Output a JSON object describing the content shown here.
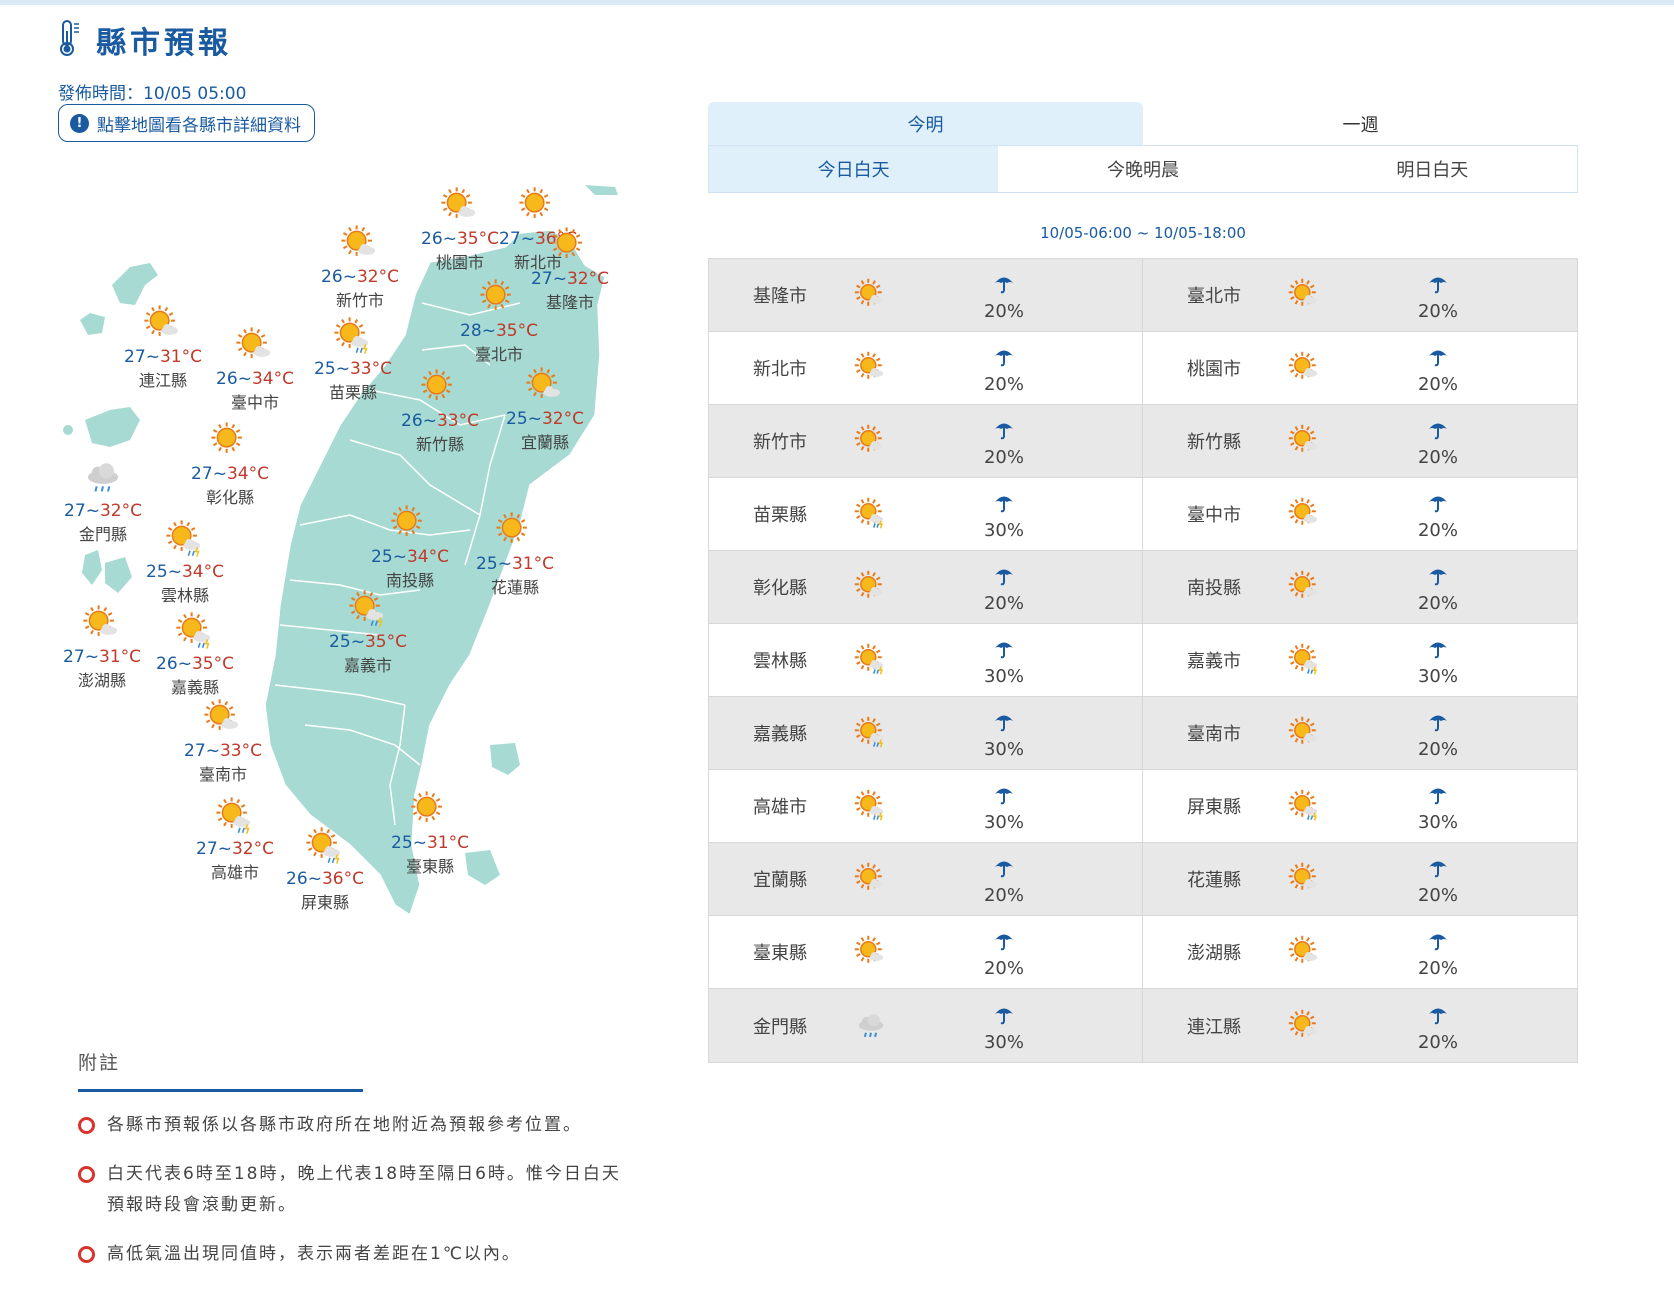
{
  "header": {
    "title": "縣市預報",
    "publish_time": "發佈時間：10/05 05:00",
    "map_button_label": "點擊地圖看各縣市詳細資料"
  },
  "colors": {
    "brand": "#1a5aa0",
    "high_temp": "#c0392b",
    "map_fill": "#a6dad2",
    "grey_row": "#e8e8e8"
  },
  "map": {
    "labels": [
      {
        "city": "新竹市",
        "lo": "26",
        "hi": "32",
        "unit": "°C",
        "icon": "sunny-cloudy-icon"
      },
      {
        "city": "桃園市",
        "lo": "26",
        "hi": "35",
        "unit": "°C",
        "icon": "sunny-cloudy-icon"
      },
      {
        "city": "新北市",
        "lo": "27",
        "hi": "36",
        "unit": "°C",
        "icon": "sunny-icon"
      },
      {
        "city": "基隆市",
        "lo": "27",
        "hi": "32",
        "unit": "°C",
        "icon": "sunny-icon"
      },
      {
        "city": "臺北市",
        "lo": "28",
        "hi": "35",
        "unit": "°C",
        "icon": "sunny-icon"
      },
      {
        "city": "連江縣",
        "lo": "27",
        "hi": "31",
        "unit": "°C",
        "icon": "sunny-cloudy-icon"
      },
      {
        "city": "臺中市",
        "lo": "26",
        "hi": "34",
        "unit": "°C",
        "icon": "sunny-cloudy-icon"
      },
      {
        "city": "苗栗縣",
        "lo": "25",
        "hi": "33",
        "unit": "°C",
        "icon": "sun-shower-icon"
      },
      {
        "city": "新竹縣",
        "lo": "26",
        "hi": "33",
        "unit": "°C",
        "icon": "sunny-icon"
      },
      {
        "city": "宜蘭縣",
        "lo": "25",
        "hi": "32",
        "unit": "°C",
        "icon": "sunny-cloudy-icon"
      },
      {
        "city": "彰化縣",
        "lo": "27",
        "hi": "34",
        "unit": "°C",
        "icon": "sunny-icon"
      },
      {
        "city": "金門縣",
        "lo": "27",
        "hi": "32",
        "unit": "°C",
        "icon": "cloudy-rain-icon"
      },
      {
        "city": "南投縣",
        "lo": "25",
        "hi": "34",
        "unit": "°C",
        "icon": "sunny-icon"
      },
      {
        "city": "花蓮縣",
        "lo": "25",
        "hi": "31",
        "unit": "°C",
        "icon": "sunny-icon"
      },
      {
        "city": "雲林縣",
        "lo": "25",
        "hi": "34",
        "unit": "°C",
        "icon": "sun-shower-icon"
      },
      {
        "city": "嘉義市",
        "lo": "25",
        "hi": "35",
        "unit": "°C",
        "icon": "sun-shower-icon"
      },
      {
        "city": "澎湖縣",
        "lo": "27",
        "hi": "31",
        "unit": "°C",
        "icon": "sunny-cloudy-icon"
      },
      {
        "city": "嘉義縣",
        "lo": "26",
        "hi": "35",
        "unit": "°C",
        "icon": "sun-shower-icon"
      },
      {
        "city": "臺南市",
        "lo": "27",
        "hi": "33",
        "unit": "°C",
        "icon": "sunny-cloudy-icon"
      },
      {
        "city": "臺東縣",
        "lo": "25",
        "hi": "31",
        "unit": "°C",
        "icon": "sunny-icon"
      },
      {
        "city": "高雄市",
        "lo": "27",
        "hi": "32",
        "unit": "°C",
        "icon": "sun-shower-icon"
      },
      {
        "city": "屏東縣",
        "lo": "26",
        "hi": "36",
        "unit": "°C",
        "icon": "sun-shower-icon"
      }
    ]
  },
  "tabs": {
    "period": [
      "今明",
      "一週"
    ],
    "time": [
      "今日白天",
      "今晚明晨",
      "明日白天"
    ]
  },
  "range": "10/05-06:00 ~ 10/05-18:00",
  "table": [
    [
      {
        "city": "基隆市",
        "icon": "sunny-cloudy-icon",
        "rain": "20%"
      },
      {
        "city": "臺北市",
        "icon": "sunny-cloudy-icon",
        "rain": "20%"
      }
    ],
    [
      {
        "city": "新北市",
        "icon": "sunny-cloudy-icon",
        "rain": "20%"
      },
      {
        "city": "桃園市",
        "icon": "sunny-cloudy-icon",
        "rain": "20%"
      }
    ],
    [
      {
        "city": "新竹市",
        "icon": "sunny-cloudy-icon",
        "rain": "20%"
      },
      {
        "city": "新竹縣",
        "icon": "sunny-cloudy-icon",
        "rain": "20%"
      }
    ],
    [
      {
        "city": "苗栗縣",
        "icon": "sun-shower-icon",
        "rain": "30%"
      },
      {
        "city": "臺中市",
        "icon": "sunny-cloudy-icon",
        "rain": "20%"
      }
    ],
    [
      {
        "city": "彰化縣",
        "icon": "sunny-cloudy-icon",
        "rain": "20%"
      },
      {
        "city": "南投縣",
        "icon": "sunny-cloudy-icon",
        "rain": "20%"
      }
    ],
    [
      {
        "city": "雲林縣",
        "icon": "sun-shower-icon",
        "rain": "30%"
      },
      {
        "city": "嘉義市",
        "icon": "sun-shower-icon",
        "rain": "30%"
      }
    ],
    [
      {
        "city": "嘉義縣",
        "icon": "sun-shower-icon",
        "rain": "30%"
      },
      {
        "city": "臺南市",
        "icon": "sunny-cloudy-icon",
        "rain": "20%"
      }
    ],
    [
      {
        "city": "高雄市",
        "icon": "sun-shower-icon",
        "rain": "30%"
      },
      {
        "city": "屏東縣",
        "icon": "sun-shower-icon",
        "rain": "30%"
      }
    ],
    [
      {
        "city": "宜蘭縣",
        "icon": "sunny-cloudy-icon",
        "rain": "20%"
      },
      {
        "city": "花蓮縣",
        "icon": "sunny-cloudy-icon",
        "rain": "20%"
      }
    ],
    [
      {
        "city": "臺東縣",
        "icon": "sunny-cloudy-icon",
        "rain": "20%"
      },
      {
        "city": "澎湖縣",
        "icon": "sunny-cloudy-icon",
        "rain": "20%"
      }
    ],
    [
      {
        "city": "金門縣",
        "icon": "cloudy-rain-icon",
        "rain": "30%"
      },
      {
        "city": "連江縣",
        "icon": "sunny-cloudy-icon",
        "rain": "20%"
      }
    ]
  ],
  "notes": {
    "title": "附註",
    "items": [
      "各縣市預報係以各縣市政府所在地附近為預報參考位置。",
      "白天代表6時至18時，晚上代表18時至隔日6時。惟今日白天預報時段會滾動更新。",
      "高低氣溫出現同值時，表示兩者差距在1℃以內。"
    ]
  }
}
